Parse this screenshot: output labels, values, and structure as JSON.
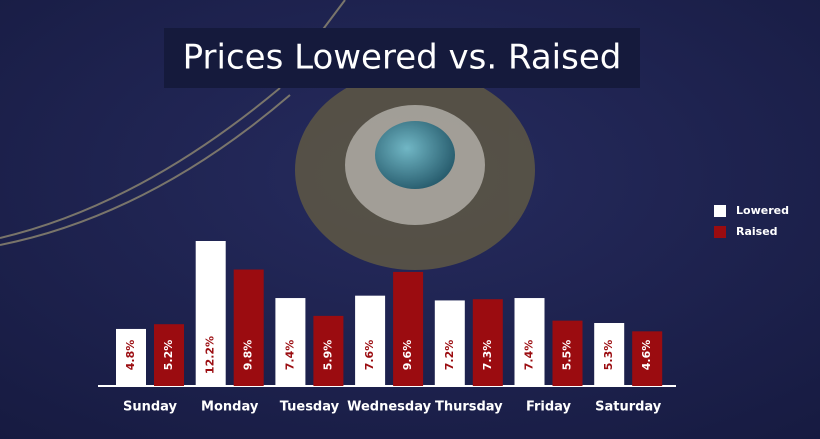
{
  "chart_data": {
    "type": "bar",
    "title": "Prices Lowered vs. Raised",
    "categories": [
      "Sunday",
      "Monday",
      "Tuesday",
      "Wednesday",
      "Thursday",
      "Friday",
      "Saturday"
    ],
    "series": [
      {
        "name": "Lowered",
        "color": "#ffffff",
        "values": [
          4.8,
          12.2,
          7.4,
          7.6,
          7.2,
          7.4,
          5.3
        ],
        "value_labels": [
          "4.8%",
          "12.2%",
          "7.4%",
          "7.6%",
          "7.2%",
          "7.4%",
          "5.3%"
        ]
      },
      {
        "name": "Raised",
        "color": "#9b0c10",
        "values": [
          5.2,
          9.8,
          5.9,
          9.6,
          7.3,
          5.5,
          4.6
        ],
        "value_labels": [
          "5.2%",
          "9.8%",
          "5.9%",
          "9.6%",
          "7.3%",
          "5.5%",
          "4.6%"
        ]
      }
    ],
    "legend": "right"
  }
}
